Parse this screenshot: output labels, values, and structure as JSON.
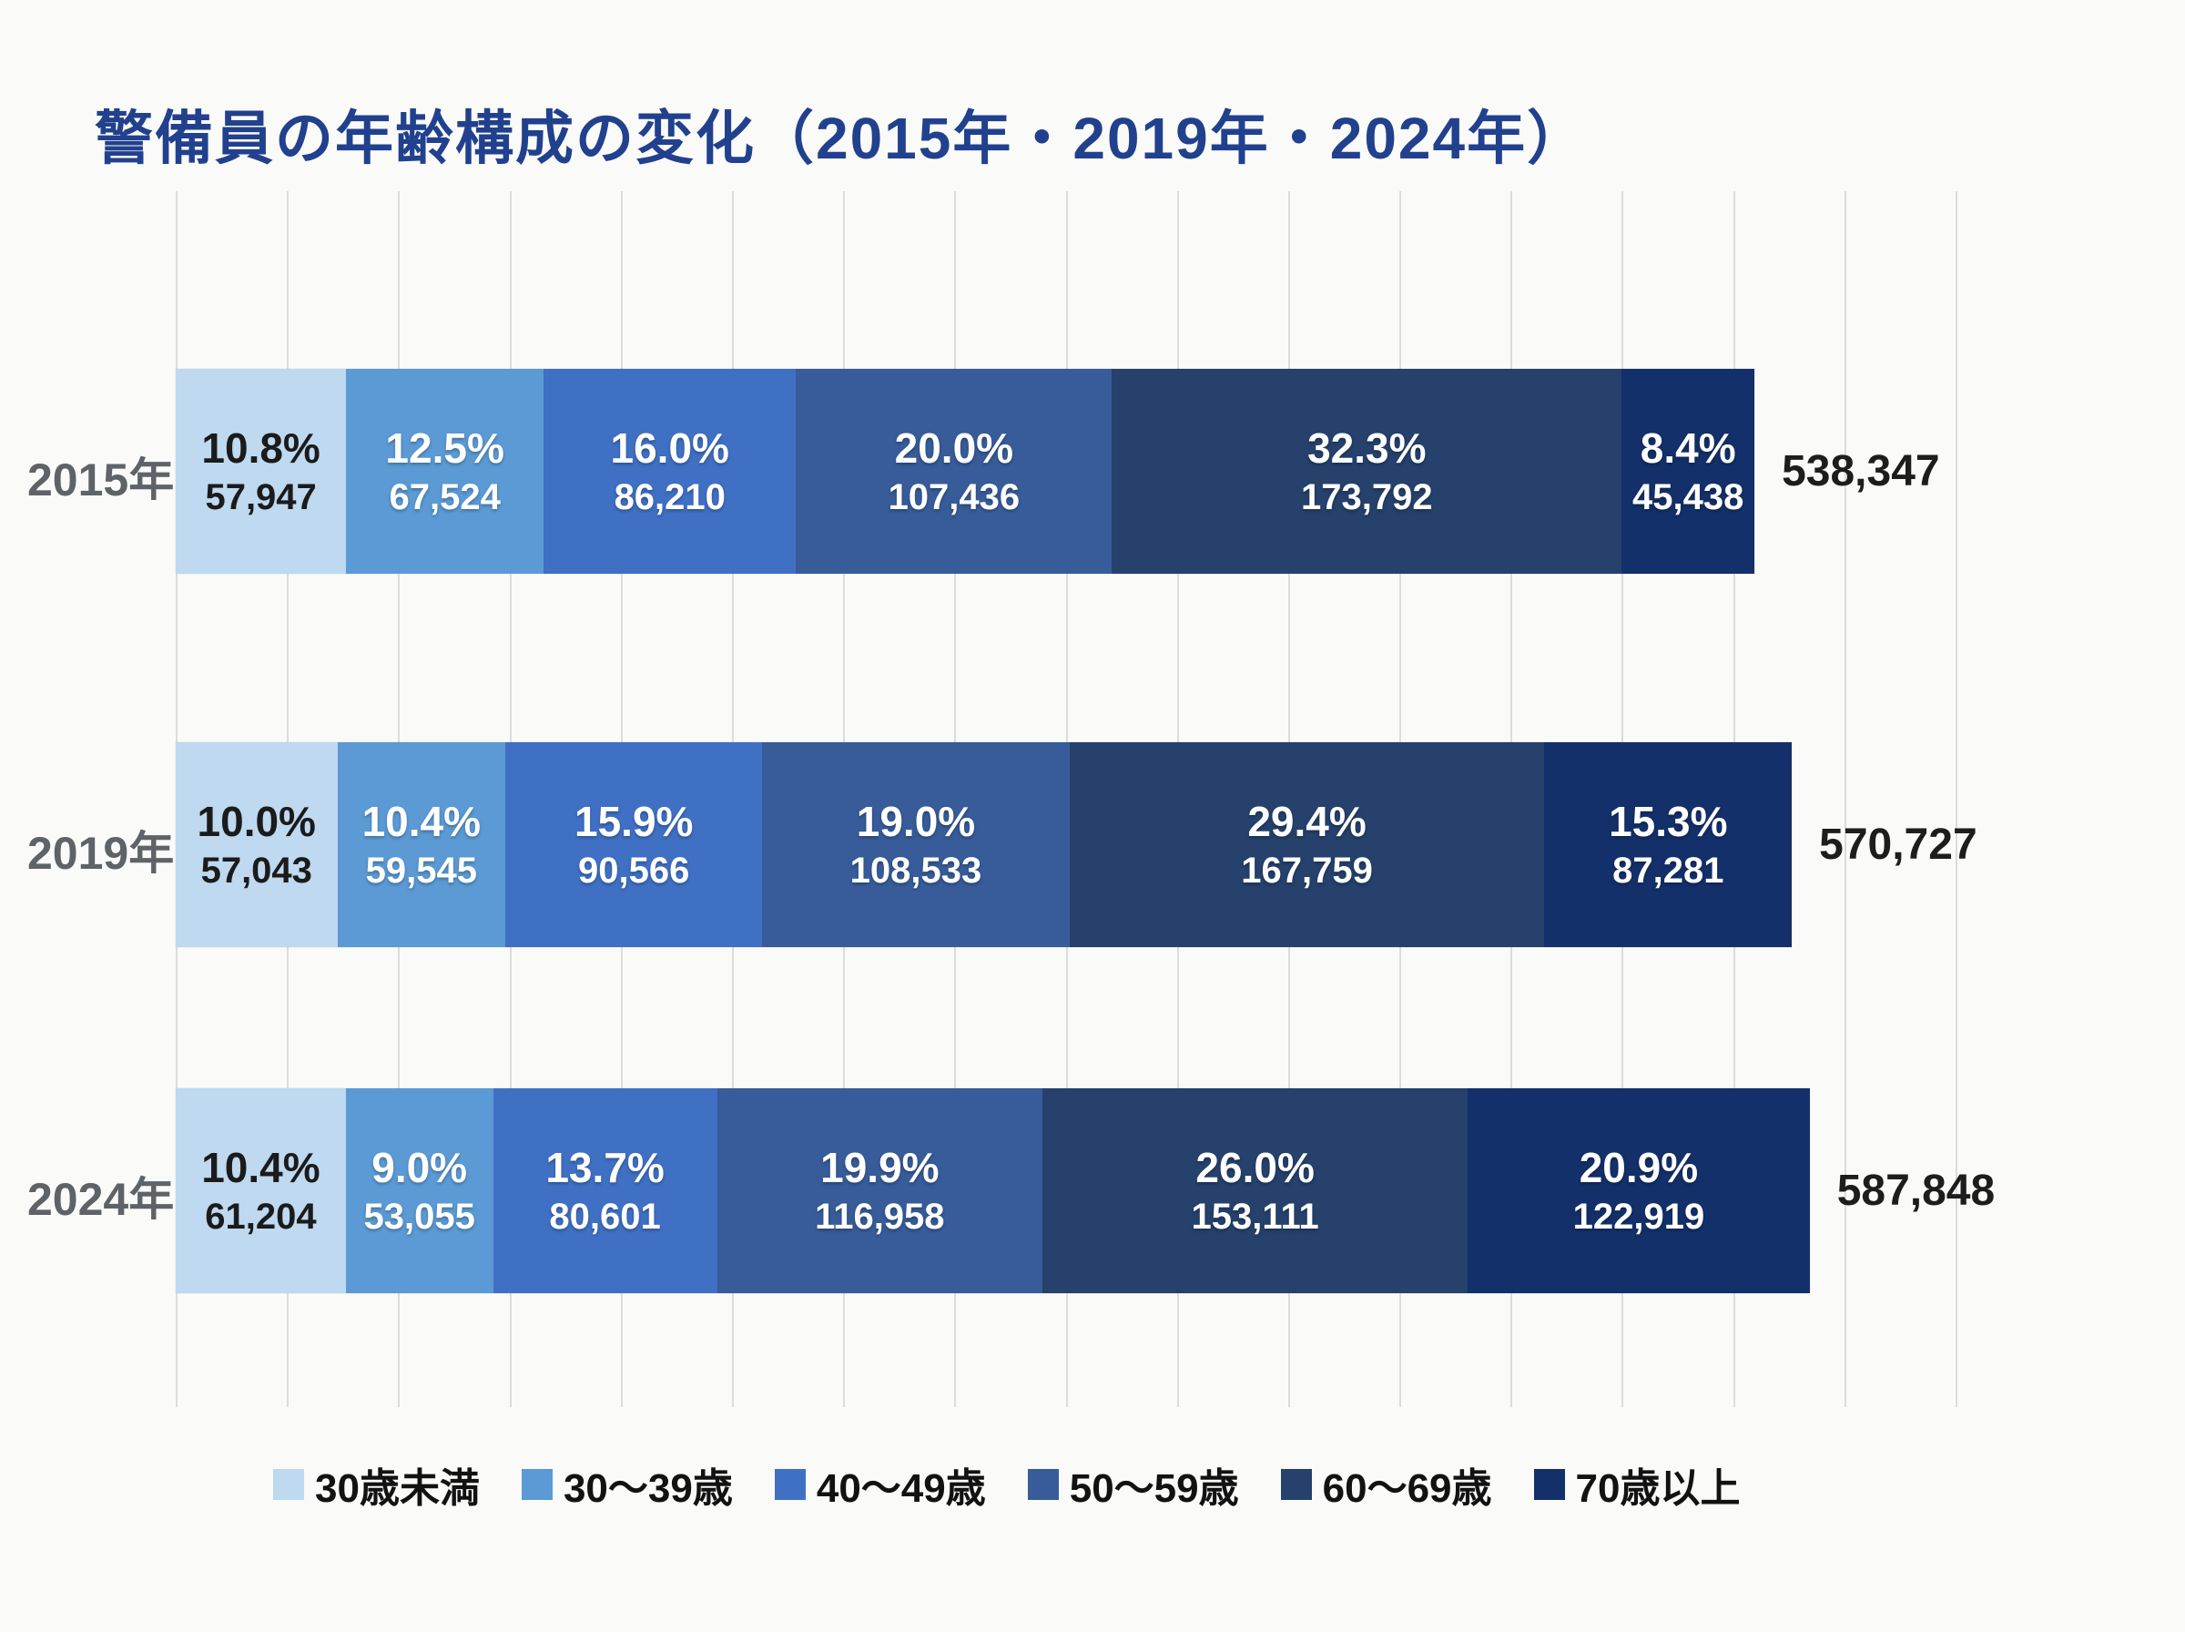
{
  "title": "警備員の年齢構成の変化（2015年・2019年・2024年）",
  "chart_data": {
    "type": "bar",
    "orientation": "horizontal-stacked",
    "grid": true,
    "legend_position": "bottom",
    "categories": [
      "30歳未満",
      "30〜39歳",
      "40〜49歳",
      "50〜59歳",
      "60〜69歳",
      "70歳以上"
    ],
    "colors": [
      "#BED9F0",
      "#5B9AD4",
      "#3F70C4",
      "#375C99",
      "#25416C",
      "#14306A"
    ],
    "rows": [
      {
        "label": "2015年",
        "total": "538,347",
        "segments": [
          {
            "pct": "10.8%",
            "value": "57,947"
          },
          {
            "pct": "12.5%",
            "value": "67,524"
          },
          {
            "pct": "16.0%",
            "value": "86,210"
          },
          {
            "pct": "20.0%",
            "value": "107,436"
          },
          {
            "pct": "32.3%",
            "value": "173,792"
          },
          {
            "pct": "8.4%",
            "value": "45,438"
          }
        ]
      },
      {
        "label": "2019年",
        "total": "570,727",
        "segments": [
          {
            "pct": "10.0%",
            "value": "57,043"
          },
          {
            "pct": "10.4%",
            "value": "59,545"
          },
          {
            "pct": "15.9%",
            "value": "90,566"
          },
          {
            "pct": "19.0%",
            "value": "108,533"
          },
          {
            "pct": "29.4%",
            "value": "167,759"
          },
          {
            "pct": "15.3%",
            "value": "87,281"
          }
        ]
      },
      {
        "label": "2024年",
        "total": "587,848",
        "segments": [
          {
            "pct": "10.4%",
            "value": "61,204"
          },
          {
            "pct": "9.0%",
            "value": "53,055"
          },
          {
            "pct": "13.7%",
            "value": "80,601"
          },
          {
            "pct": "19.9%",
            "value": "116,958"
          },
          {
            "pct": "26.0%",
            "value": "153,111"
          },
          {
            "pct": "20.9%",
            "value": "122,919"
          }
        ]
      }
    ]
  }
}
